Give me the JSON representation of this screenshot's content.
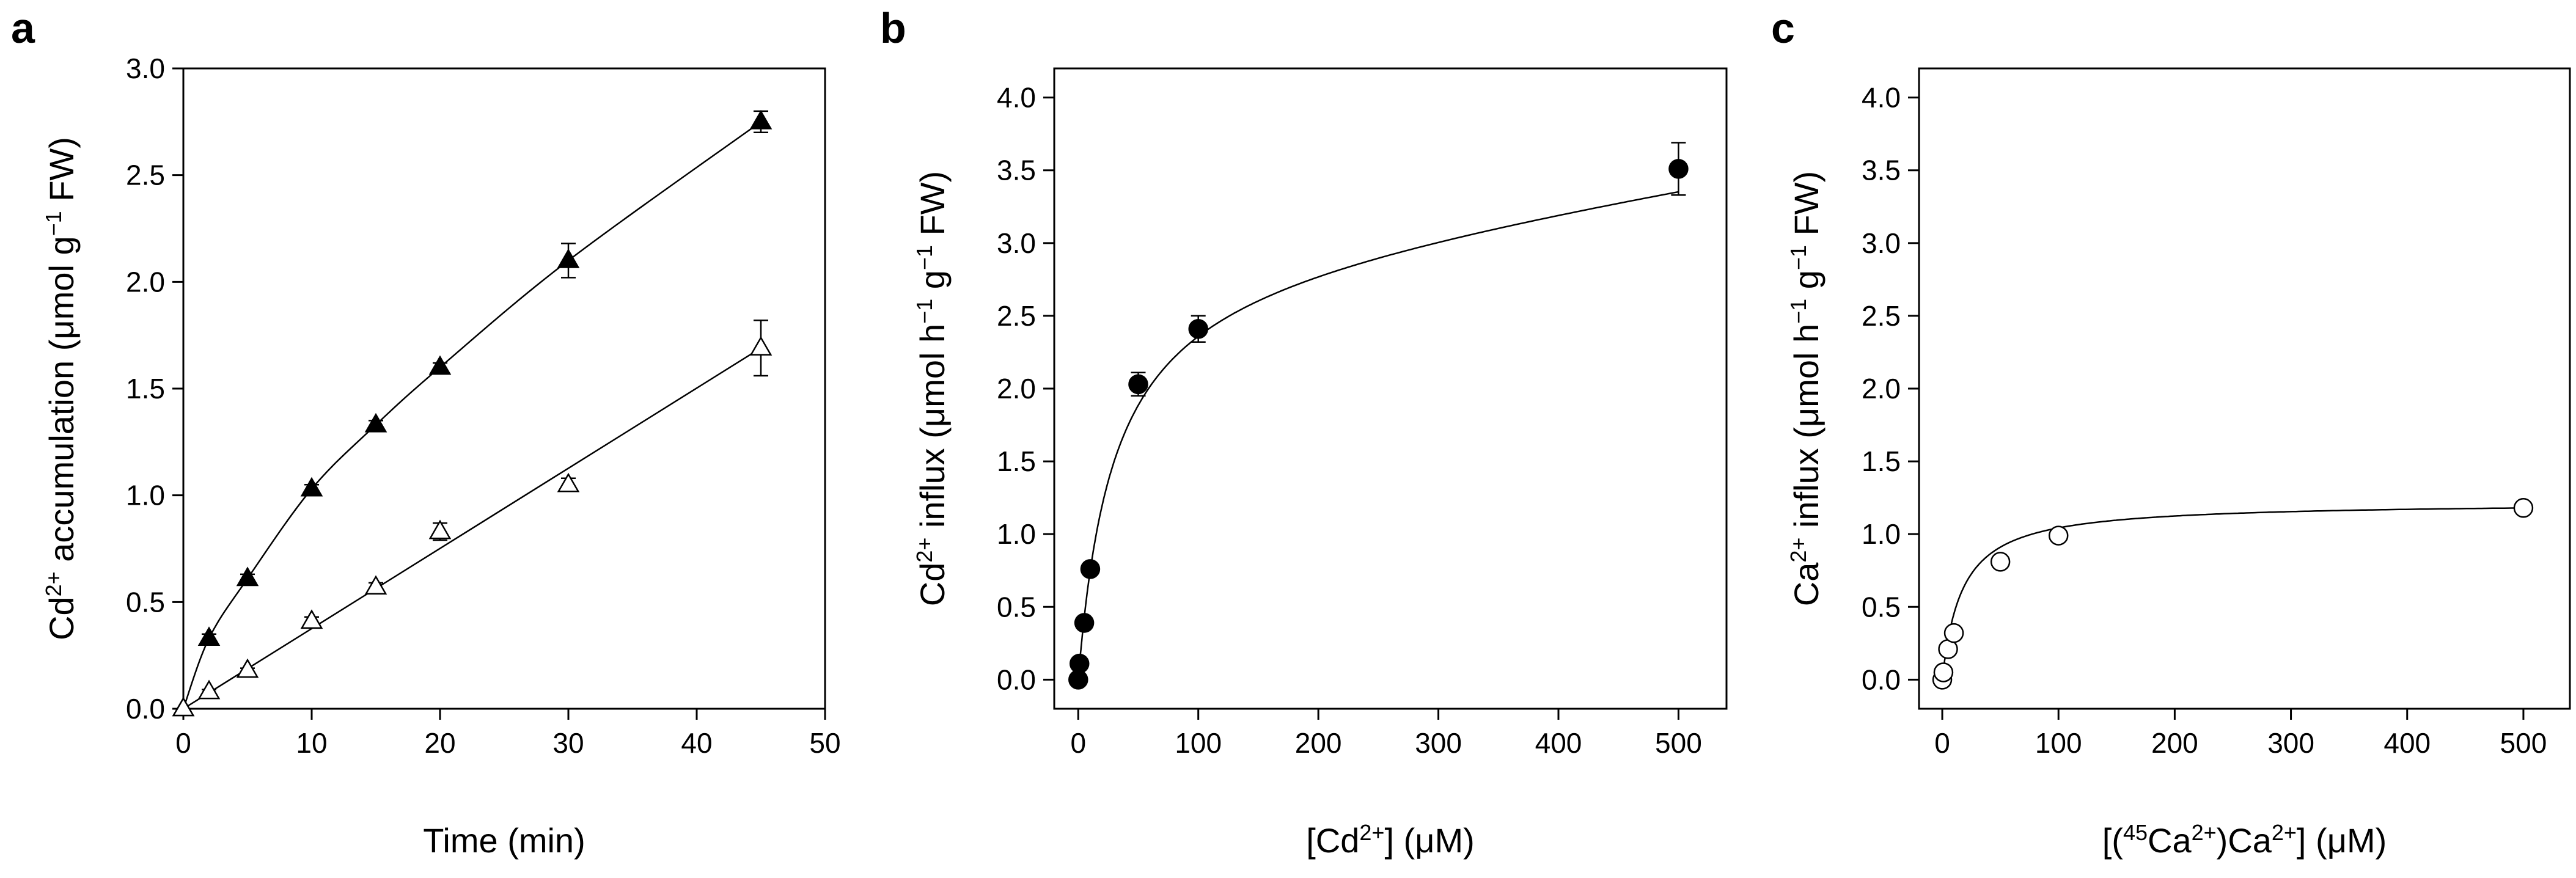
{
  "chart_data": [
    {
      "panel": "a",
      "type": "scatter",
      "title": "",
      "xlabel": "Time (min)",
      "ylabel_parts": [
        "Cd",
        "2+",
        " accumulation (μmol g",
        "−1",
        " FW)"
      ],
      "xlim": [
        0,
        50
      ],
      "ylim": [
        0,
        3.0
      ],
      "xticks": [
        0,
        10,
        20,
        30,
        40,
        50
      ],
      "yticks": [
        0.0,
        0.5,
        1.0,
        1.5,
        2.0,
        2.5,
        3.0
      ],
      "ytick_format": 1,
      "series": [
        {
          "name": "filled triangles",
          "marker": "triangle",
          "filled": true,
          "x": [
            0,
            2,
            5,
            10,
            15,
            20,
            30,
            45
          ],
          "y": [
            0,
            0.33,
            0.61,
            1.03,
            1.33,
            1.6,
            2.1,
            2.75
          ],
          "err": [
            0,
            0.02,
            0.02,
            0.02,
            0.02,
            0.02,
            0.08,
            0.05
          ],
          "fit": {
            "kind": "smooth",
            "x": [
              0,
              2,
              5,
              10,
              15,
              20,
              30,
              45
            ],
            "y": [
              0,
              0.33,
              0.61,
              1.03,
              1.33,
              1.6,
              2.1,
              2.75
            ]
          }
        },
        {
          "name": "open triangles",
          "marker": "triangle",
          "filled": false,
          "x": [
            0,
            2,
            5,
            10,
            15,
            20,
            30,
            45
          ],
          "y": [
            0,
            0.08,
            0.18,
            0.41,
            0.57,
            0.83,
            1.05,
            1.69
          ],
          "err": [
            0,
            0.01,
            0.01,
            0.02,
            0.02,
            0.04,
            0.03,
            0.13
          ],
          "fit": {
            "kind": "linear",
            "x": [
              0,
              45
            ],
            "y": [
              0,
              1.69
            ]
          }
        }
      ]
    },
    {
      "panel": "b",
      "type": "scatter",
      "title": "",
      "xlabel_parts": [
        "[Cd",
        "2+",
        "] (μM)"
      ],
      "ylabel_parts": [
        "Cd",
        "2+",
        " influx (μmol h",
        "−1",
        " g",
        "−1",
        " FW)"
      ],
      "xlim": [
        -20,
        540
      ],
      "ylim": [
        -0.2,
        4.2
      ],
      "xticks": [
        0,
        100,
        200,
        300,
        400,
        500
      ],
      "yticks": [
        0.0,
        0.5,
        1.0,
        1.5,
        2.0,
        2.5,
        3.0,
        3.5,
        4.0
      ],
      "ytick_format": 1,
      "series": [
        {
          "name": "Cd2+ influx",
          "marker": "circle",
          "filled": true,
          "x": [
            0,
            1,
            5,
            10,
            50,
            100,
            500
          ],
          "y": [
            0,
            0.11,
            0.39,
            0.76,
            2.03,
            2.41,
            3.51
          ],
          "err": [
            0,
            0.02,
            0.02,
            0.03,
            0.08,
            0.09,
            0.18
          ],
          "fit": {
            "kind": "mm_linear",
            "vmax": 2.88,
            "km": 29,
            "k": 0.00126,
            "x0": 0,
            "x1": 500
          }
        }
      ]
    },
    {
      "panel": "c",
      "type": "scatter",
      "title": "",
      "xlabel_parts": [
        "[(",
        "45",
        "Ca",
        "2+",
        ")Ca",
        "2+",
        "] (μM)"
      ],
      "ylabel_parts": [
        "Ca",
        "2+",
        " influx (μmol h",
        "−1",
        " g",
        "−1",
        " FW)"
      ],
      "xlim": [
        -20,
        540
      ],
      "ylim": [
        -0.2,
        4.2
      ],
      "xticks": [
        0,
        100,
        200,
        300,
        400,
        500
      ],
      "yticks": [
        0.0,
        0.5,
        1.0,
        1.5,
        2.0,
        2.5,
        3.0,
        3.5,
        4.0
      ],
      "ytick_format": 1,
      "series": [
        {
          "name": "Ca2+ influx",
          "marker": "circle",
          "filled": false,
          "x": [
            0,
            1,
            5,
            10,
            50,
            100,
            500
          ],
          "y": [
            0,
            0.05,
            0.21,
            0.32,
            0.81,
            0.99,
            1.18
          ],
          "err": [
            0,
            0.01,
            0.01,
            0.02,
            0.02,
            0.02,
            0.03
          ],
          "fit": {
            "kind": "mm_linear",
            "vmax": 1.22,
            "km": 17,
            "k": 0.0,
            "x0": 0,
            "x1": 500
          }
        }
      ]
    }
  ]
}
